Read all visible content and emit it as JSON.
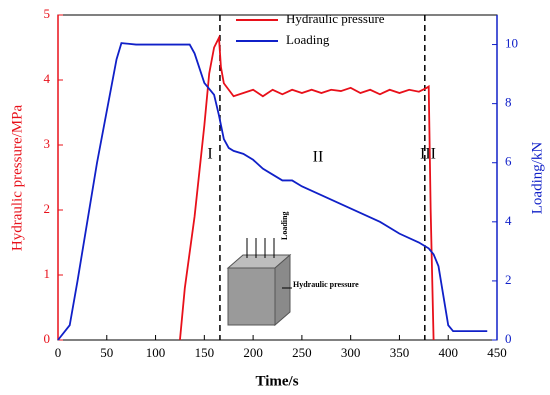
{
  "chart_data": {
    "type": "line",
    "x_label": "Time/s",
    "y_label": "Hydraulic pressure/MPa",
    "y2_label": "Loading/kN",
    "xlim": [
      0,
      450
    ],
    "xticks": [
      0,
      50,
      100,
      150,
      200,
      250,
      300,
      350,
      400,
      450
    ],
    "ylim": [
      0,
      5
    ],
    "yticks": [
      0,
      1,
      2,
      3,
      4,
      5
    ],
    "y2lim": [
      0,
      11
    ],
    "y2ticks": [
      0,
      2,
      4,
      6,
      8,
      10
    ],
    "legend": "top",
    "series": [
      {
        "name": "Hydraulic pressure",
        "color": "#e8101a",
        "x": [
          125,
          130,
          140,
          150,
          155,
          160,
          165,
          167,
          170,
          175,
          180,
          190,
          200,
          210,
          220,
          230,
          240,
          250,
          260,
          270,
          280,
          290,
          300,
          310,
          320,
          330,
          340,
          350,
          360,
          370,
          378,
          380,
          382,
          385
        ],
        "values": [
          0,
          0.8,
          1.9,
          3.3,
          4.1,
          4.5,
          4.65,
          4.2,
          3.95,
          3.85,
          3.75,
          3.8,
          3.85,
          3.75,
          3.85,
          3.78,
          3.85,
          3.8,
          3.85,
          3.8,
          3.85,
          3.83,
          3.88,
          3.8,
          3.85,
          3.78,
          3.85,
          3.8,
          3.85,
          3.82,
          3.88,
          3.9,
          2,
          0
        ]
      },
      {
        "name": "Loading",
        "color": "#1020c8",
        "axis": "y2",
        "x": [
          0,
          12,
          20,
          40,
          60,
          65,
          80,
          100,
          120,
          135,
          140,
          150,
          160,
          165,
          170,
          175,
          180,
          190,
          200,
          210,
          220,
          230,
          240,
          250,
          270,
          290,
          310,
          330,
          350,
          370,
          380,
          385,
          390,
          395,
          400,
          405,
          410,
          440
        ],
        "values": [
          0,
          0.5,
          2,
          6,
          9.5,
          10.05,
          10,
          10,
          10,
          10,
          9.7,
          8.7,
          8.3,
          7.6,
          6.8,
          6.5,
          6.4,
          6.3,
          6.1,
          5.8,
          5.6,
          5.4,
          5.4,
          5.2,
          4.9,
          4.6,
          4.3,
          4.0,
          3.6,
          3.3,
          3.1,
          2.9,
          2.5,
          1.5,
          0.5,
          0.3,
          0.3,
          0.3
        ]
      }
    ],
    "stage_lines": [
      166,
      376
    ],
    "stage_labels": [
      "I",
      "II",
      "III"
    ],
    "inset_labels": [
      "Loading",
      "Hydraulic pressure"
    ]
  }
}
